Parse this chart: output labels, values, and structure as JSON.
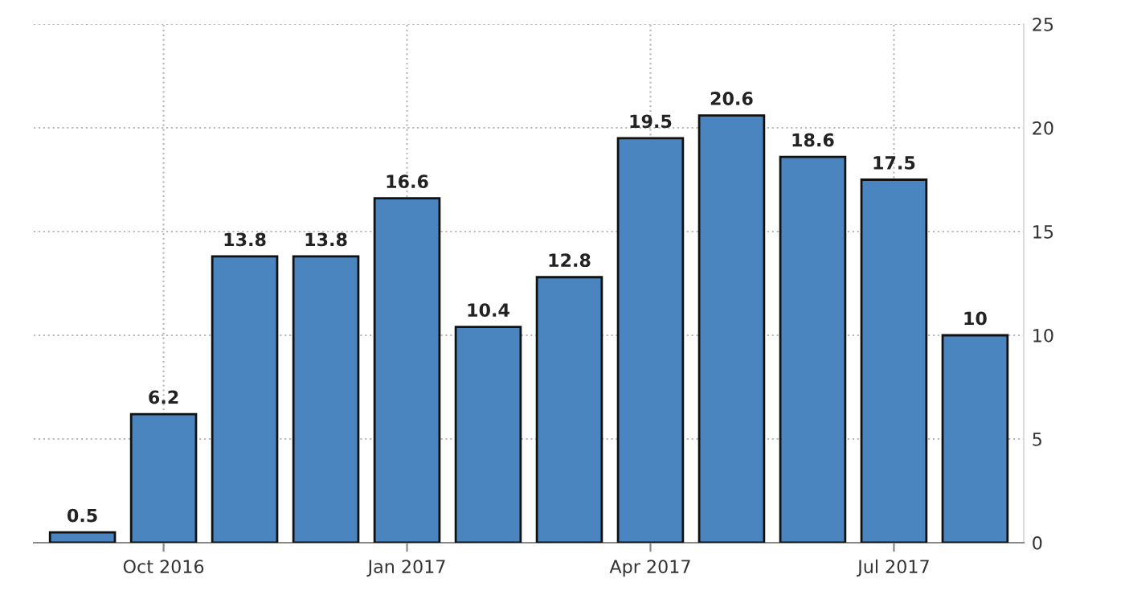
{
  "chart_data": {
    "type": "bar",
    "categories": [
      null,
      "Oct 2016",
      null,
      null,
      "Jan 2017",
      null,
      null,
      "Apr 2017",
      null,
      null,
      "Jul 2017",
      null
    ],
    "values": [
      0.5,
      6.2,
      13.8,
      13.8,
      16.6,
      10.4,
      12.8,
      19.5,
      20.6,
      18.6,
      17.5,
      10
    ],
    "color": "#4a85bf",
    "ylim": [
      0,
      25
    ],
    "yticks": [
      0,
      5,
      10,
      15,
      20,
      25
    ],
    "grid": true,
    "data_labels": true
  }
}
